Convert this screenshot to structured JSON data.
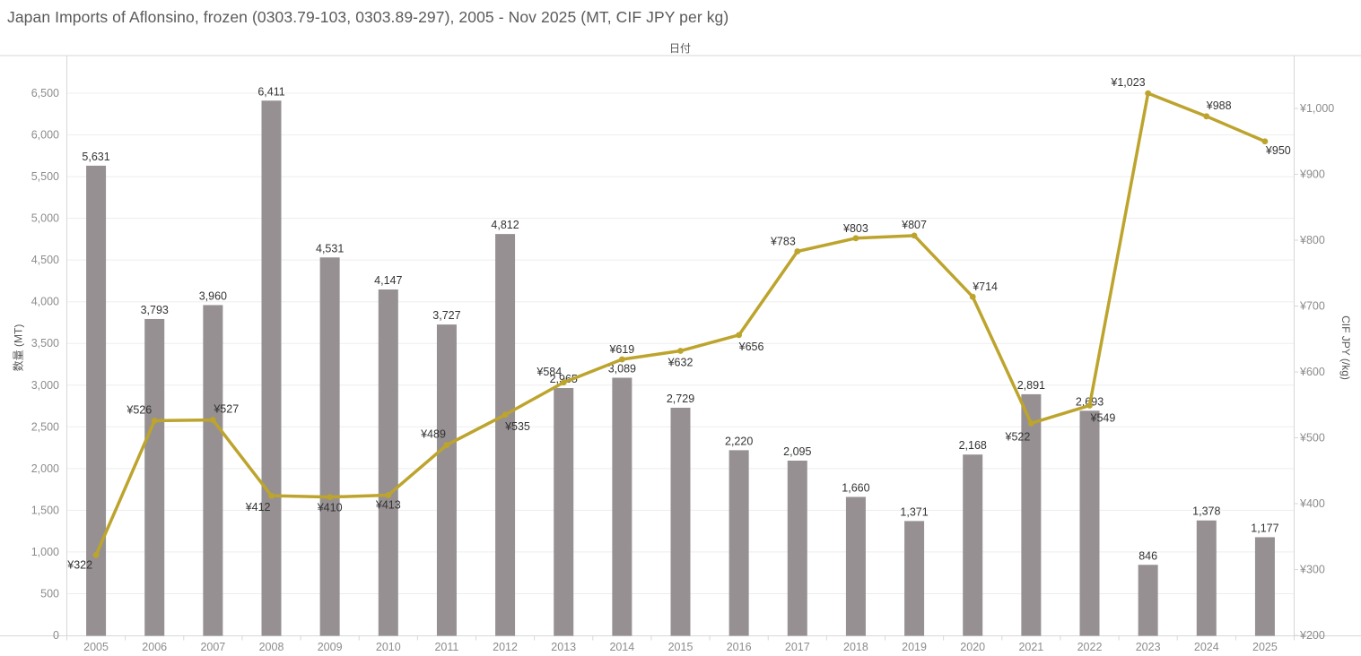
{
  "title": "Japan Imports of Aflonsino, frozen (0303.79-103, 0303.89-297), 2005 - Nov 2025 (MT, CIF JPY per kg)",
  "x_axis": {
    "title": "日付",
    "categories": [
      "2005",
      "2006",
      "2007",
      "2008",
      "2009",
      "2010",
      "2011",
      "2012",
      "2013",
      "2014",
      "2015",
      "2016",
      "2017",
      "2018",
      "2019",
      "2020",
      "2021",
      "2022",
      "2023",
      "2024",
      "2025"
    ]
  },
  "left_axis": {
    "title": "数量 (MT)",
    "min": 0,
    "max": 6500,
    "ticks": [
      0,
      500,
      1000,
      1500,
      2000,
      2500,
      3000,
      3500,
      4000,
      4500,
      5000,
      5500,
      6000,
      6500
    ]
  },
  "right_axis": {
    "title": "CIF JPY (/kg)",
    "min": 200,
    "max": 1000,
    "tick_prefix": "¥",
    "ticks": [
      200,
      300,
      400,
      500,
      600,
      700,
      800,
      900,
      1000
    ]
  },
  "chart_data": {
    "type": "combo-bar-line",
    "title": "Japan Imports of Aflonsino, frozen (0303.79-103, 0303.89-297), 2005 - Nov 2025 (MT, CIF JPY per kg)",
    "xlabel": "日付",
    "ylabel_left": "数量 (MT)",
    "ylabel_right": "CIF JPY (/kg)",
    "ylim_left": [
      0,
      6500
    ],
    "ylim_right": [
      200,
      1000
    ],
    "grid": "horizontal-left-axis-every-500",
    "legend": "none",
    "categories": [
      2005,
      2006,
      2007,
      2008,
      2009,
      2010,
      2011,
      2012,
      2013,
      2014,
      2015,
      2016,
      2017,
      2018,
      2019,
      2020,
      2021,
      2022,
      2023,
      2024,
      2025
    ],
    "series": [
      {
        "name": "数量 (MT)",
        "type": "bar",
        "axis": "left",
        "values": [
          5631,
          3793,
          3960,
          6411,
          4531,
          4147,
          3727,
          4812,
          2965,
          3089,
          2729,
          2220,
          2095,
          1660,
          1371,
          2168,
          2891,
          2693,
          846,
          1378,
          1177
        ]
      },
      {
        "name": "CIF JPY (/kg)",
        "type": "line",
        "axis": "right",
        "value_prefix": "¥",
        "values": [
          322,
          526,
          527,
          412,
          410,
          413,
          489,
          535,
          584,
          619,
          632,
          656,
          783,
          803,
          807,
          714,
          522,
          549,
          1023,
          988,
          950
        ]
      }
    ]
  },
  "colors": {
    "bar": "#969092",
    "line": "#bda42d",
    "data_label": "#333333",
    "tick_label": "#8c8c8c",
    "axis_title": "#555555",
    "title": "#5a5a5a",
    "gridline": "#ededed",
    "border": "#d7d7d7"
  }
}
